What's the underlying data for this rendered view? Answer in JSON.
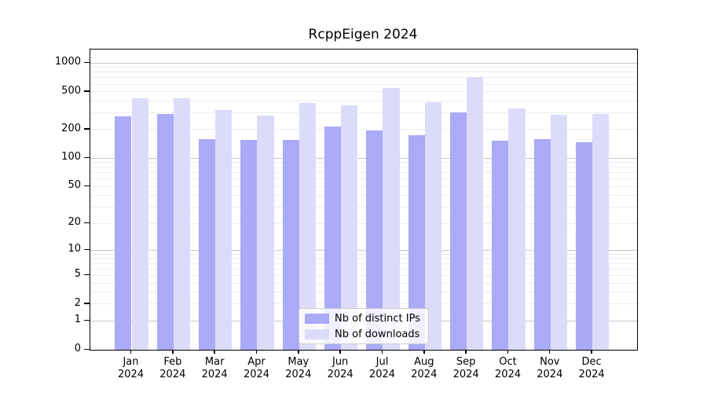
{
  "title": "RcppEigen 2024",
  "colors": {
    "bar_distinct_ips": "#aaaaf6",
    "bar_downloads": "#dcdcfa",
    "grid_major": "#c8c8c8",
    "grid_minor": "#ededed",
    "frame": "#000000",
    "legend_border": "#cccccc",
    "background": "#ffffff"
  },
  "chart_data": {
    "type": "bar",
    "title": "RcppEigen 2024",
    "scale": "log1p",
    "grid": true,
    "legend_position": "lower center",
    "categories": [
      "Jan 2024",
      "Feb 2024",
      "Mar 2024",
      "Apr 2024",
      "May 2024",
      "Jun 2024",
      "Jul 2024",
      "Aug 2024",
      "Sep 2024",
      "Oct 2024",
      "Nov 2024",
      "Dec 2024"
    ],
    "series": [
      {
        "name": "Nb of distinct IPs",
        "color": "#aaaaf6",
        "values": [
          277,
          294,
          158,
          155,
          156,
          215,
          196,
          176,
          301,
          154,
          159,
          148
        ]
      },
      {
        "name": "Nb of downloads",
        "color": "#dcdcfa",
        "values": [
          424,
          426,
          321,
          281,
          381,
          362,
          550,
          390,
          708,
          331,
          288,
          290
        ]
      }
    ],
    "y_ticks": [
      0,
      1,
      2,
      5,
      10,
      20,
      50,
      100,
      200,
      500,
      1000
    ],
    "ylim": [
      0,
      1400
    ],
    "xlabel": "",
    "ylabel": ""
  },
  "legend": {
    "items": [
      {
        "label": "Nb of distinct IPs"
      },
      {
        "label": "Nb of downloads"
      }
    ]
  }
}
